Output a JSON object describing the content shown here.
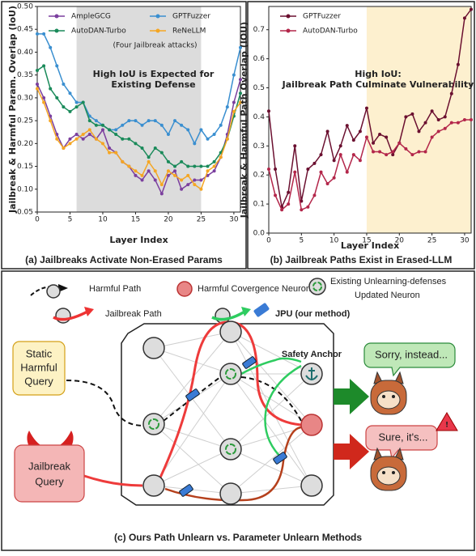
{
  "chart_data": [
    {
      "type": "line",
      "caption": "(a) Jailbreaks Activate Non-Erased Params",
      "xlabel": "Layer Index",
      "ylabel": "Jailbreak & Harmful Param. Overlap (IoU)",
      "x": [
        0,
        1,
        2,
        3,
        4,
        5,
        6,
        7,
        8,
        9,
        10,
        11,
        12,
        13,
        14,
        15,
        16,
        17,
        18,
        19,
        20,
        21,
        22,
        23,
        24,
        25,
        26,
        27,
        28,
        29,
        30,
        31
      ],
      "xlim": [
        0,
        31
      ],
      "xticks": [
        0,
        5,
        10,
        15,
        20,
        25,
        30
      ],
      "ylim": [
        0.05,
        0.5
      ],
      "yticks": [
        0.05,
        {
          "value": 0.1,
          "label": "0.10"
        },
        0.15,
        {
          "value": 0.2,
          "label": "0.20"
        },
        0.25,
        {
          "value": 0.3,
          "label": "0.30"
        },
        0.35,
        {
          "value": 0.4,
          "label": "0.40"
        },
        0.45,
        {
          "value": 0.5,
          "label": "0.50"
        }
      ],
      "legend": "upper center",
      "legend_note": "(Four Jailbreak attacks)",
      "shade": {
        "x": [
          6,
          25
        ],
        "color": "#dcdcdc",
        "annotation": [
          "High IoU is Expected for",
          "Existing Defense"
        ]
      },
      "series": [
        {
          "name": "AmpleGCG",
          "color": "#7b3f9e",
          "values": [
            0.33,
            0.3,
            0.26,
            0.22,
            0.19,
            0.21,
            0.22,
            0.21,
            0.22,
            0.21,
            0.23,
            0.19,
            0.18,
            0.16,
            0.15,
            0.13,
            0.12,
            0.14,
            0.12,
            0.09,
            0.13,
            0.14,
            0.1,
            0.11,
            0.12,
            0.12,
            0.13,
            0.14,
            0.17,
            0.22,
            0.29,
            0.34
          ]
        },
        {
          "name": "GPTFuzzer",
          "color": "#3a8fd0",
          "values": [
            0.44,
            0.44,
            0.41,
            0.37,
            0.33,
            0.31,
            0.29,
            0.29,
            0.26,
            0.25,
            0.24,
            0.23,
            0.23,
            0.24,
            0.25,
            0.25,
            0.24,
            0.25,
            0.25,
            0.24,
            0.22,
            0.25,
            0.24,
            0.23,
            0.2,
            0.23,
            0.21,
            0.22,
            0.24,
            0.28,
            0.35,
            0.41
          ]
        },
        {
          "name": "AutoDAN-Turbo",
          "color": "#1a8a5a",
          "values": [
            0.36,
            0.37,
            0.32,
            0.3,
            0.28,
            0.27,
            0.28,
            0.29,
            0.25,
            0.24,
            0.24,
            0.23,
            0.22,
            0.21,
            0.21,
            0.2,
            0.19,
            0.17,
            0.19,
            0.18,
            0.16,
            0.15,
            0.16,
            0.15,
            0.15,
            0.15,
            0.15,
            0.16,
            0.18,
            0.21,
            0.26,
            0.31
          ]
        },
        {
          "name": "ReNeLLM",
          "color": "#f5a623",
          "values": [
            0.32,
            0.29,
            0.25,
            0.21,
            0.19,
            0.2,
            0.21,
            0.22,
            0.23,
            0.21,
            0.2,
            0.18,
            0.18,
            0.16,
            0.15,
            0.14,
            0.13,
            0.16,
            0.14,
            0.11,
            0.14,
            0.13,
            0.12,
            0.13,
            0.11,
            0.1,
            0.14,
            0.15,
            0.17,
            0.21,
            0.27,
            0.29
          ]
        }
      ]
    },
    {
      "type": "line",
      "caption": "(b) Jailbreak Paths Exist in Erased-LLM",
      "xlabel": "Layer Index",
      "ylabel": "Jailbreak & Harmful Path Overlap (IOU)",
      "x": [
        0,
        1,
        2,
        3,
        4,
        5,
        6,
        7,
        8,
        9,
        10,
        11,
        12,
        13,
        14,
        15,
        16,
        17,
        18,
        19,
        20,
        21,
        22,
        23,
        24,
        25,
        26,
        27,
        28,
        29,
        30,
        31
      ],
      "xlim": [
        0,
        31
      ],
      "xticks": [
        0,
        5,
        10,
        15,
        20,
        25,
        30
      ],
      "ylim": [
        0,
        0.78
      ],
      "yticks": [
        {
          "value": 0,
          "label": "0.0"
        },
        0.1,
        0.2,
        0.3,
        0.4,
        0.5,
        0.6,
        0.7
      ],
      "legend": "upper left",
      "shade": {
        "x": [
          15,
          31
        ],
        "color": "#fdf0cf",
        "annotation": [
          "High IoU:",
          "Jailbreak Path Culminate Vulnerability"
        ]
      },
      "series": [
        {
          "name": "GPTFuzzer",
          "color": "#6b1030",
          "values": [
            0.42,
            0.22,
            0.09,
            0.14,
            0.3,
            0.11,
            0.22,
            0.24,
            0.27,
            0.35,
            0.25,
            0.3,
            0.37,
            0.32,
            0.35,
            0.43,
            0.31,
            0.34,
            0.33,
            0.27,
            0.31,
            0.4,
            0.41,
            0.35,
            0.38,
            0.42,
            0.39,
            0.4,
            0.48,
            0.58,
            0.74,
            0.77
          ]
        },
        {
          "name": "AutoDAN-Turbo",
          "color": "#b3264a",
          "values": [
            0.22,
            0.13,
            0.08,
            0.1,
            0.21,
            0.08,
            0.09,
            0.13,
            0.21,
            0.17,
            0.19,
            0.27,
            0.21,
            0.27,
            0.25,
            0.33,
            0.28,
            0.28,
            0.27,
            0.28,
            0.31,
            0.29,
            0.27,
            0.28,
            0.28,
            0.33,
            0.35,
            0.36,
            0.38,
            0.38,
            0.39,
            0.39
          ]
        }
      ]
    }
  ],
  "diagram": {
    "legend": {
      "harmful_path": "Harmful Path",
      "convergence_neuron": "Harmful Covergence Neuron",
      "defense_neuron": [
        "Existing Unlearning-defenses",
        "Updated Neuron"
      ],
      "jailbreak_path": "Jailbreak Path",
      "jpu": "JPU (our method)"
    },
    "static_query": [
      "Static",
      "Harmful",
      "Query"
    ],
    "jailbreak_query": [
      "Jailbreak",
      "Query"
    ],
    "safety_anchor": "Safety Anchor",
    "reply_safe": "Sorry, instead...",
    "reply_unsafe": "Sure, it's...",
    "caption": "(c) Ours Path Unlearn vs. Parameter Unlearn Methods"
  }
}
